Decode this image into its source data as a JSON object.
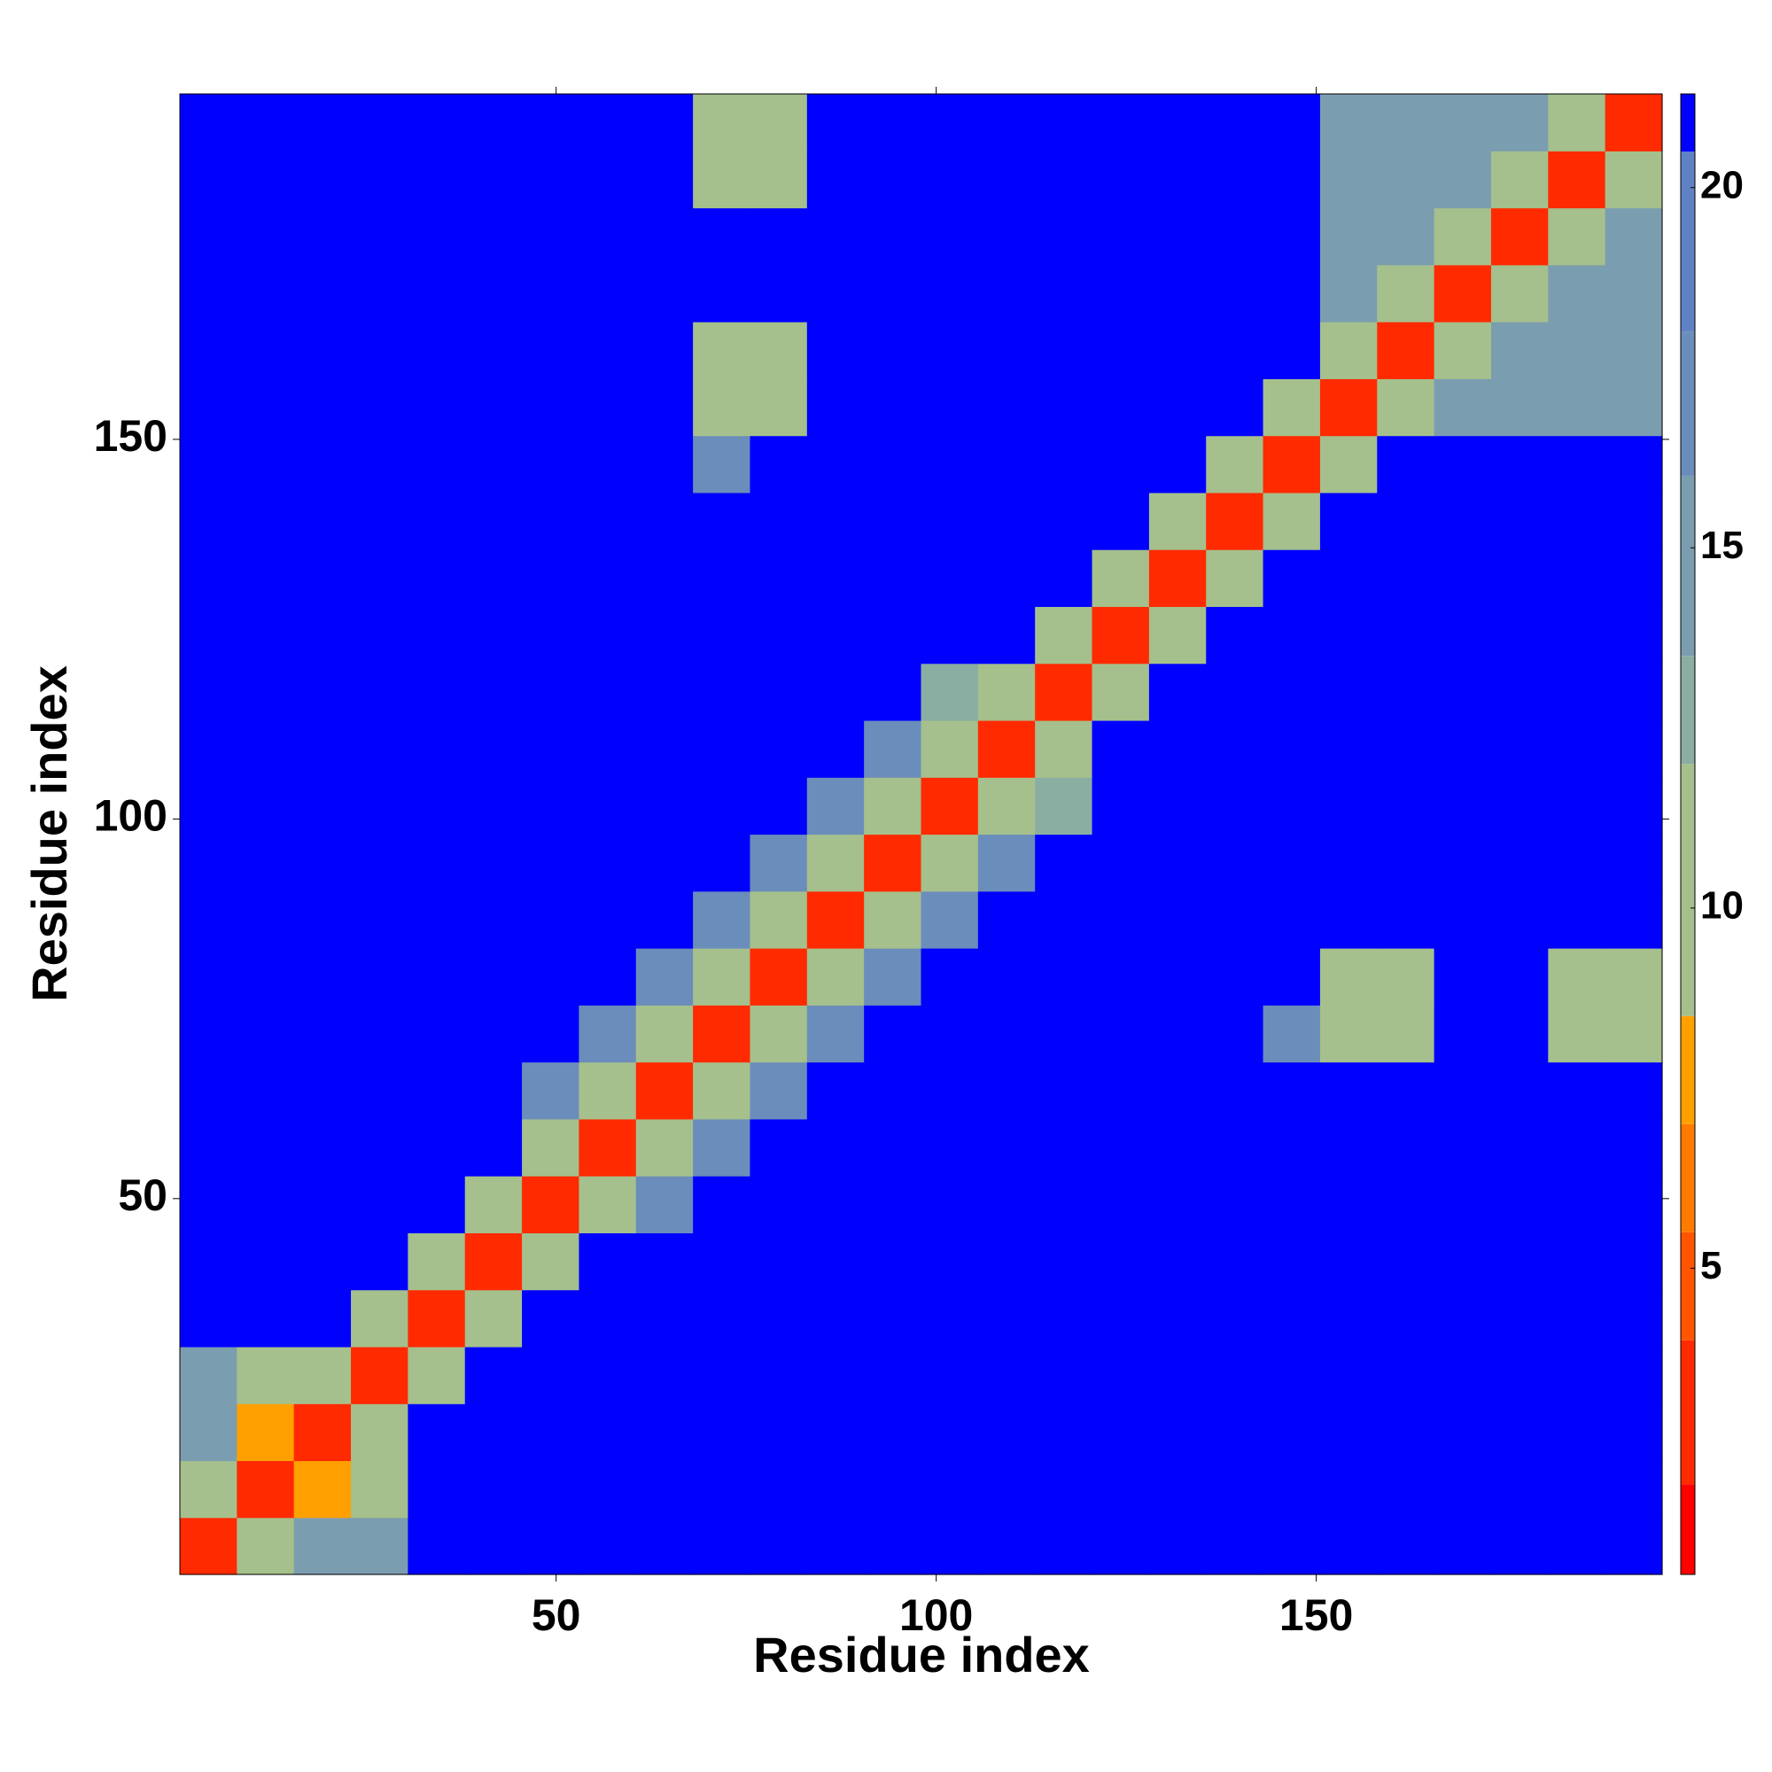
{
  "chart_data": {
    "type": "heatmap",
    "x_label": "Residue index",
    "y_label": "Residue index",
    "x": [
      4.25,
      11.75,
      19.25,
      26.75,
      34.25,
      41.75,
      49.25,
      56.75,
      64.25,
      71.75,
      79.25,
      86.75,
      94.25,
      101.75,
      109.25,
      116.75,
      124.25,
      131.75,
      139.25,
      146.75,
      154.25,
      161.75,
      169.25,
      176.75,
      184.25,
      191.75
    ],
    "y": [
      4.25,
      11.75,
      19.25,
      26.75,
      34.25,
      41.75,
      49.25,
      56.75,
      64.25,
      71.75,
      79.25,
      86.75,
      94.25,
      101.75,
      109.25,
      116.75,
      124.25,
      131.75,
      139.25,
      146.75,
      154.25,
      161.75,
      169.25,
      176.75,
      184.25,
      191.75
    ],
    "z": [
      [
        3,
        11,
        14,
        15,
        21,
        21,
        21,
        21,
        21,
        21,
        21,
        21,
        21,
        21,
        21,
        21,
        21,
        21,
        21,
        21,
        21,
        21,
        21,
        21,
        21,
        21
      ],
      [
        11,
        3,
        8,
        9,
        21,
        21,
        21,
        21,
        21,
        21,
        21,
        21,
        21,
        21,
        21,
        21,
        21,
        21,
        21,
        21,
        21,
        21,
        21,
        21,
        21,
        21
      ],
      [
        14,
        8,
        3,
        11,
        21,
        21,
        21,
        21,
        21,
        21,
        21,
        21,
        21,
        21,
        21,
        21,
        21,
        21,
        21,
        21,
        21,
        21,
        21,
        21,
        21,
        21
      ],
      [
        15,
        9,
        11,
        3,
        11,
        21,
        21,
        21,
        21,
        21,
        21,
        21,
        21,
        21,
        21,
        21,
        21,
        21,
        21,
        21,
        21,
        21,
        21,
        21,
        21,
        21
      ],
      [
        21,
        21,
        21,
        11,
        3,
        11,
        21,
        21,
        21,
        21,
        21,
        21,
        21,
        21,
        21,
        21,
        21,
        21,
        21,
        21,
        21,
        21,
        21,
        21,
        21,
        21
      ],
      [
        21,
        21,
        21,
        21,
        11,
        3,
        11,
        21,
        21,
        21,
        21,
        21,
        21,
        21,
        21,
        21,
        21,
        21,
        21,
        21,
        21,
        21,
        21,
        21,
        21,
        21
      ],
      [
        21,
        21,
        21,
        21,
        21,
        11,
        3,
        11,
        16,
        21,
        21,
        21,
        21,
        21,
        21,
        21,
        21,
        21,
        21,
        21,
        21,
        21,
        21,
        21,
        21,
        21
      ],
      [
        21,
        21,
        21,
        21,
        21,
        21,
        11,
        3,
        11,
        16,
        21,
        21,
        21,
        21,
        21,
        21,
        21,
        21,
        21,
        21,
        21,
        21,
        21,
        21,
        21,
        21
      ],
      [
        21,
        21,
        21,
        21,
        21,
        21,
        16,
        11,
        3,
        11,
        16,
        21,
        21,
        21,
        21,
        21,
        21,
        21,
        21,
        21,
        21,
        21,
        21,
        21,
        21,
        21
      ],
      [
        21,
        21,
        21,
        21,
        21,
        21,
        21,
        16,
        11,
        3,
        11,
        16,
        21,
        21,
        21,
        21,
        21,
        21,
        21,
        17,
        9,
        9,
        21,
        21,
        10,
        10
      ],
      [
        21,
        21,
        21,
        21,
        21,
        21,
        21,
        21,
        16,
        11,
        3,
        11,
        16,
        21,
        21,
        21,
        21,
        21,
        21,
        21,
        9,
        9,
        21,
        21,
        10,
        10
      ],
      [
        21,
        21,
        21,
        21,
        21,
        21,
        21,
        21,
        21,
        16,
        11,
        3,
        11,
        16,
        21,
        21,
        21,
        21,
        21,
        21,
        21,
        21,
        21,
        21,
        21,
        21
      ],
      [
        21,
        21,
        21,
        21,
        21,
        21,
        21,
        21,
        21,
        21,
        16,
        11,
        3,
        11,
        16,
        21,
        21,
        21,
        21,
        21,
        21,
        21,
        21,
        21,
        21,
        21
      ],
      [
        21,
        21,
        21,
        21,
        21,
        21,
        21,
        21,
        21,
        21,
        21,
        16,
        11,
        3,
        11,
        12,
        21,
        21,
        21,
        21,
        21,
        21,
        21,
        21,
        21,
        21
      ],
      [
        21,
        21,
        21,
        21,
        21,
        21,
        21,
        21,
        21,
        21,
        21,
        21,
        16,
        11,
        3,
        11,
        21,
        21,
        21,
        21,
        21,
        21,
        21,
        21,
        21,
        21
      ],
      [
        21,
        21,
        21,
        21,
        21,
        21,
        21,
        21,
        21,
        21,
        21,
        21,
        21,
        12,
        11,
        3,
        11,
        21,
        21,
        21,
        21,
        21,
        21,
        21,
        21,
        21
      ],
      [
        21,
        21,
        21,
        21,
        21,
        21,
        21,
        21,
        21,
        21,
        21,
        21,
        21,
        21,
        21,
        11,
        3,
        11,
        21,
        21,
        21,
        21,
        21,
        21,
        21,
        21
      ],
      [
        21,
        21,
        21,
        21,
        21,
        21,
        21,
        21,
        21,
        21,
        21,
        21,
        21,
        21,
        21,
        21,
        11,
        3,
        11,
        21,
        21,
        21,
        21,
        21,
        21,
        21
      ],
      [
        21,
        21,
        21,
        21,
        21,
        21,
        21,
        21,
        21,
        21,
        21,
        21,
        21,
        21,
        21,
        21,
        21,
        11,
        3,
        11,
        21,
        21,
        21,
        21,
        21,
        21
      ],
      [
        21,
        21,
        21,
        21,
        21,
        21,
        21,
        21,
        21,
        17,
        21,
        21,
        21,
        21,
        21,
        21,
        21,
        21,
        11,
        3,
        11,
        21,
        21,
        21,
        21,
        21
      ],
      [
        21,
        21,
        21,
        21,
        21,
        21,
        21,
        21,
        21,
        9,
        9,
        21,
        21,
        21,
        21,
        21,
        21,
        21,
        21,
        11,
        3,
        9,
        14,
        14,
        14,
        14
      ],
      [
        21,
        21,
        21,
        21,
        21,
        21,
        21,
        21,
        21,
        9,
        9,
        21,
        21,
        21,
        21,
        21,
        21,
        21,
        21,
        21,
        9,
        3,
        9,
        14,
        14,
        14
      ],
      [
        21,
        21,
        21,
        21,
        21,
        21,
        21,
        21,
        21,
        21,
        21,
        21,
        21,
        21,
        21,
        21,
        21,
        21,
        21,
        21,
        14,
        9,
        3,
        9,
        14,
        14
      ],
      [
        21,
        21,
        21,
        21,
        21,
        21,
        21,
        21,
        21,
        21,
        21,
        21,
        21,
        21,
        21,
        21,
        21,
        21,
        21,
        21,
        14,
        14,
        9,
        3,
        9,
        14
      ],
      [
        21,
        21,
        21,
        21,
        21,
        21,
        21,
        21,
        21,
        10,
        10,
        21,
        21,
        21,
        21,
        21,
        21,
        21,
        21,
        21,
        14,
        14,
        14,
        9,
        3,
        9
      ],
      [
        21,
        21,
        21,
        21,
        21,
        21,
        21,
        21,
        21,
        10,
        10,
        21,
        21,
        21,
        21,
        21,
        21,
        21,
        21,
        21,
        14,
        14,
        14,
        14,
        9,
        3
      ]
    ],
    "xlim": [
      0.5,
      195.5
    ],
    "ylim": [
      0.5,
      195.5
    ],
    "xticks": [
      50,
      100,
      150
    ],
    "yticks": [
      50,
      100,
      150
    ],
    "clim": [
      0.75,
      21.3
    ],
    "colorbar_ticks": [
      5,
      10,
      15,
      20
    ],
    "colormap": [
      [
        0.75,
        "#ff0000"
      ],
      [
        2,
        "#ff2a00"
      ],
      [
        4,
        "#ff5500"
      ],
      [
        5.5,
        "#ff7a00"
      ],
      [
        7,
        "#ffa000"
      ],
      [
        8.5,
        "#a5c08c"
      ],
      [
        12,
        "#8aaea2"
      ],
      [
        13.5,
        "#7b9db0"
      ],
      [
        16,
        "#6b8dbb"
      ],
      [
        18,
        "#6082c4"
      ],
      [
        20.5,
        "#0000ff"
      ]
    ]
  }
}
